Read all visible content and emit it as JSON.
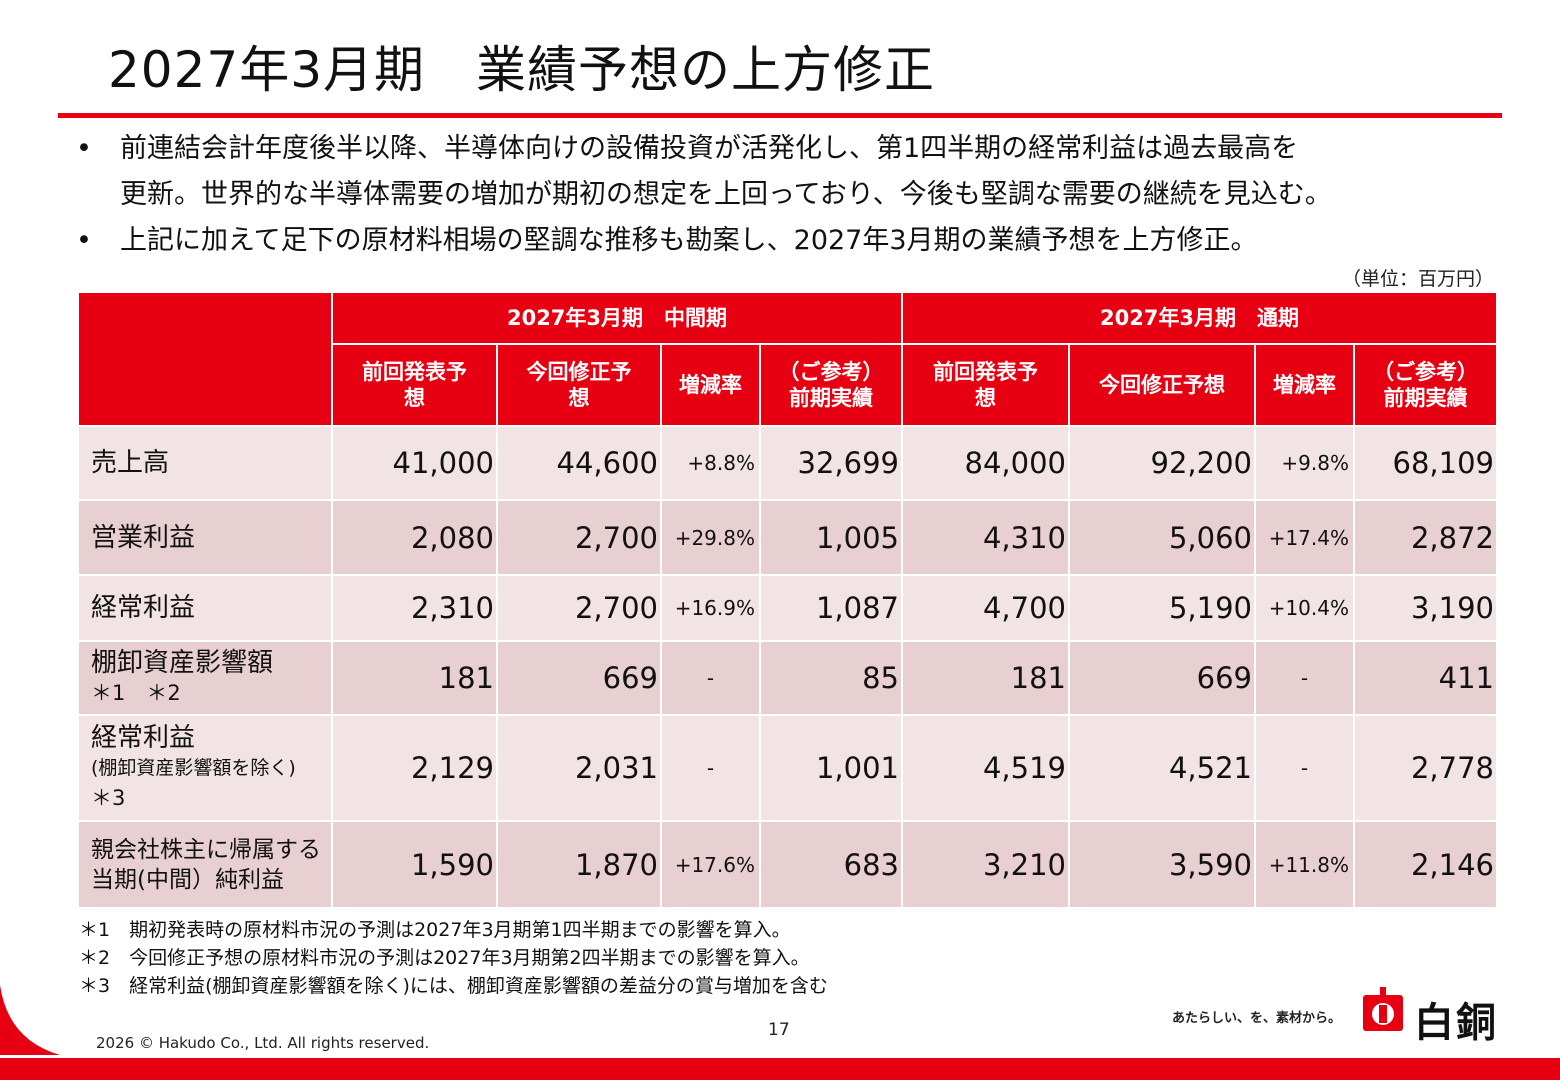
{
  "title": "2027年3月期　業績予想の上方修正",
  "bullets": [
    {
      "marker": "•",
      "lines": [
        "前連結会計年度後半以降、半導体向けの設備投資が活発化し、第1四半期の経常利益は過去最高を",
        "更新。世界的な半導体需要の増加が期初の想定を上回っており、今後も堅調な需要の継続を見込む。"
      ]
    },
    {
      "marker": "•",
      "lines": [
        "上記に加えて足下の原材料相場の堅調な推移も勘案し、2027年3月期の業績予想を上方修正。"
      ]
    }
  ],
  "unit": "（単位：百万円）",
  "table": {
    "group_headers": [
      "2027年3月期　中間期",
      "2027年3月期　通期"
    ],
    "sub_headers": [
      "前回発表予想",
      "今回修正予想",
      "増減率",
      "（ご参考）前期実績",
      "前回発表予想",
      "今回修正予想",
      "増減率",
      "（ご参考）前期実績"
    ],
    "sub_headers_display": [
      [
        "前回発表予",
        "想"
      ],
      [
        "今回修正予",
        "想"
      ],
      [
        "増減率"
      ],
      [
        "（ご参考）",
        "前期実績"
      ],
      [
        "前回発表予",
        "想"
      ],
      [
        "今回修正予想"
      ],
      [
        "増減率"
      ],
      [
        "（ご参考）",
        "前期実績"
      ]
    ],
    "rows": [
      {
        "label": [
          "売上高"
        ],
        "values": [
          "41,000",
          "44,600",
          "+8.8%",
          "32,699",
          "84,000",
          "92,200",
          "+9.8%",
          "68,109"
        ]
      },
      {
        "label": [
          "営業利益"
        ],
        "values": [
          "2,080",
          "2,700",
          "+29.8%",
          "1,005",
          "4,310",
          "5,060",
          "+17.4%",
          "2,872"
        ]
      },
      {
        "label": [
          "経常利益"
        ],
        "values": [
          "2,310",
          "2,700",
          "+16.9%",
          "1,087",
          "4,700",
          "5,190",
          "+10.4%",
          "3,190"
        ]
      },
      {
        "label": [
          "棚卸資産影響額",
          "＊1　＊2"
        ],
        "values": [
          "181",
          "669",
          "-",
          "85",
          "181",
          "669",
          "-",
          "411"
        ]
      },
      {
        "label": [
          "経常利益",
          "(棚卸資産影響額を除く)",
          "＊3"
        ],
        "values": [
          "2,129",
          "2,031",
          "-",
          "1,001",
          "4,519",
          "4,521",
          "-",
          "2,778"
        ]
      },
      {
        "label": [
          "親会社株主に帰属する",
          "当期(中間）純利益"
        ],
        "values": [
          "1,590",
          "1,870",
          "+17.6%",
          "683",
          "3,210",
          "3,590",
          "+11.8%",
          "2,146"
        ]
      }
    ]
  },
  "notes": [
    "＊1　期初発表時の原材料市況の予測は2027年3月期第1四半期までの影響を算入。",
    "＊2　今回修正予想の原材料市況の予測は2027年3月期第2四半期までの影響を算入。",
    "＊3　経常利益(棚卸資産影響額を除く)には、棚卸資産影響額の差益分の賞与増加を含む"
  ],
  "footer": {
    "copyright": "2026 © Hakudo Co., Ltd. All rights reserved.",
    "page_number": "17",
    "tagline": "あたらしい、を、素材から。",
    "logo_text": "白銅"
  },
  "colors": {
    "accent": "#e60012",
    "row_light": "#f2e4e5",
    "row_dark": "#e8cfd2"
  }
}
